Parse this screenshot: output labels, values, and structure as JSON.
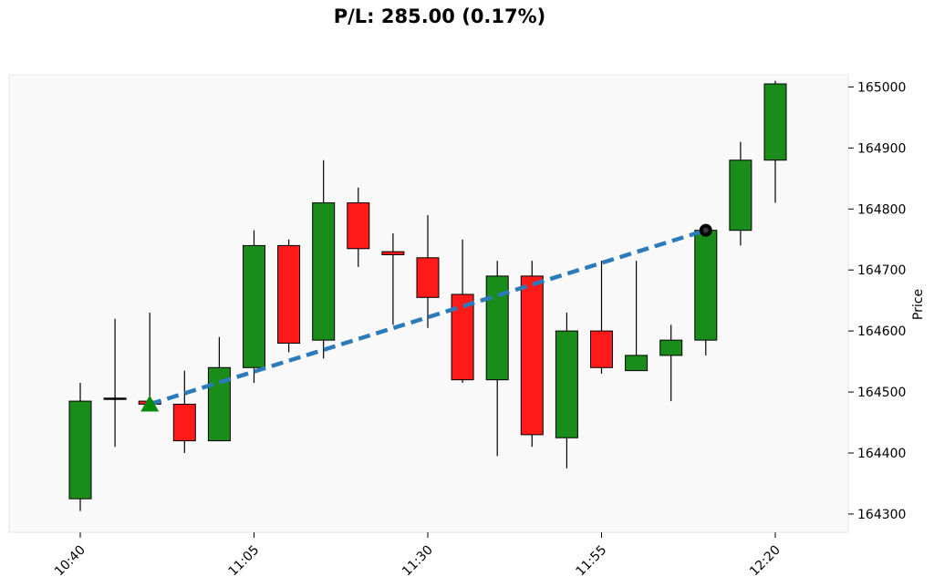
{
  "title": "P/L: 285.00 (0.17%)",
  "chart_data": {
    "type": "candlestick",
    "title": "P/L: 285.00 (0.17%)",
    "xlabel": "",
    "ylabel": "Price",
    "ylim": [
      164270,
      165020
    ],
    "yticks": [
      164300,
      164400,
      164500,
      164600,
      164700,
      164800,
      164900,
      165000
    ],
    "xticks": [
      "10:40",
      "11:05",
      "11:30",
      "11:55",
      "12:20"
    ],
    "grid": false,
    "colors": {
      "up": "#1a8c1a",
      "down": "#ff1a1a",
      "trade_line": "#2b7bba",
      "entry_marker": "#0a8a0a",
      "exit_marker": "#000000",
      "plot_bg": "#f9f9f9"
    },
    "candles": [
      {
        "time": "10:40",
        "open": 164325,
        "high": 164515,
        "low": 164305,
        "close": 164485
      },
      {
        "time": "10:45",
        "open": 164490,
        "high": 164620,
        "low": 164410,
        "close": 164490
      },
      {
        "time": "10:50",
        "open": 164485,
        "high": 164630,
        "low": 164470,
        "close": 164480
      },
      {
        "time": "10:55",
        "open": 164480,
        "high": 164535,
        "low": 164400,
        "close": 164420
      },
      {
        "time": "11:00",
        "open": 164420,
        "high": 164590,
        "low": 164420,
        "close": 164540
      },
      {
        "time": "11:05",
        "open": 164540,
        "high": 164765,
        "low": 164515,
        "close": 164740
      },
      {
        "time": "11:10",
        "open": 164740,
        "high": 164750,
        "low": 164565,
        "close": 164580
      },
      {
        "time": "11:15",
        "open": 164585,
        "high": 164880,
        "low": 164555,
        "close": 164810
      },
      {
        "time": "11:20",
        "open": 164810,
        "high": 164835,
        "low": 164705,
        "close": 164735
      },
      {
        "time": "11:25",
        "open": 164730,
        "high": 164760,
        "low": 164610,
        "close": 164725
      },
      {
        "time": "11:30",
        "open": 164720,
        "high": 164790,
        "low": 164605,
        "close": 164655
      },
      {
        "time": "11:35",
        "open": 164660,
        "high": 164750,
        "low": 164515,
        "close": 164520
      },
      {
        "time": "11:40",
        "open": 164520,
        "high": 164715,
        "low": 164395,
        "close": 164690
      },
      {
        "time": "11:45",
        "open": 164690,
        "high": 164715,
        "low": 164410,
        "close": 164430
      },
      {
        "time": "11:50",
        "open": 164425,
        "high": 164630,
        "low": 164375,
        "close": 164600
      },
      {
        "time": "11:55",
        "open": 164600,
        "high": 164715,
        "low": 164530,
        "close": 164540
      },
      {
        "time": "12:00",
        "open": 164535,
        "high": 164715,
        "low": 164535,
        "close": 164560
      },
      {
        "time": "12:05",
        "open": 164560,
        "high": 164610,
        "low": 164485,
        "close": 164585
      },
      {
        "time": "12:10",
        "open": 164585,
        "high": 164765,
        "low": 164560,
        "close": 164765
      },
      {
        "time": "12:15",
        "open": 164765,
        "high": 164910,
        "low": 164740,
        "close": 164880
      },
      {
        "time": "12:20",
        "open": 164880,
        "high": 165010,
        "low": 164810,
        "close": 165005
      }
    ],
    "trade": {
      "entry": {
        "time": "10:50",
        "price": 164480
      },
      "exit": {
        "time": "12:10",
        "price": 164765
      }
    }
  }
}
